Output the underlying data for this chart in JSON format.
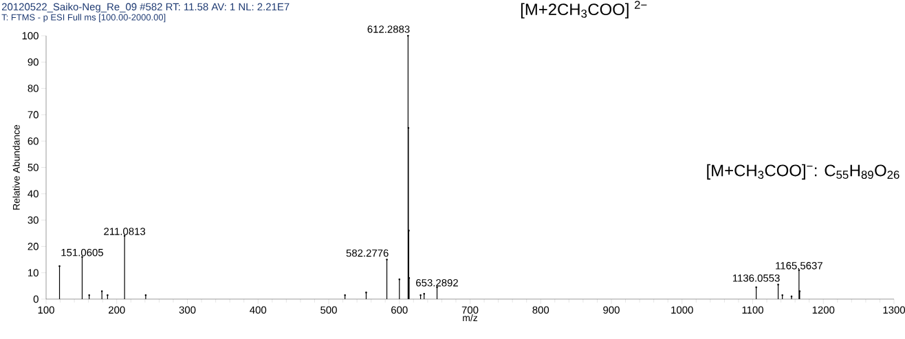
{
  "chart_data": {
    "type": "lollipop",
    "title": "20120522_Saiko-Neg_Re_09 #582  RT: 11.58  AV: 1  NL: 2.21E7",
    "subtitle": "T: FTMS - p ESI Full ms [100.00-2000.00]",
    "xlabel": "m/z",
    "ylabel": "Relative Abundance",
    "x": [
      119,
      151.06,
      161,
      179,
      187,
      211.08,
      241,
      523,
      553,
      582.28,
      600,
      612.29,
      612.79,
      613.29,
      613.79,
      630,
      635,
      653.29,
      1105,
      1136.06,
      1142,
      1155,
      1165.56,
      1166.5
    ],
    "values": [
      12.5,
      16,
      1.5,
      3,
      1.5,
      24,
      1.5,
      1.5,
      2.5,
      15,
      7.5,
      100,
      65,
      26,
      8,
      1.5,
      2,
      4.5,
      4.5,
      5.5,
      1.5,
      1,
      11,
      3
    ],
    "color": "#000000",
    "xlim": [
      100,
      1300
    ],
    "xticks": [
      100,
      200,
      300,
      400,
      500,
      600,
      700,
      800,
      900,
      1000,
      1100,
      1200,
      1300
    ],
    "ylim": [
      0,
      100
    ],
    "yticks": [
      0,
      10,
      20,
      30,
      40,
      50,
      60,
      70,
      80,
      90,
      100
    ],
    "annotations": [
      {
        "text": "151.0605",
        "x": 151.06,
        "y": 16
      },
      {
        "text": "211.0813",
        "x": 211.08,
        "y": 24
      },
      {
        "text": "582.2776",
        "x": 582.28,
        "y": 15
      },
      {
        "text": "612.2883",
        "x": 612.29,
        "y": 100
      },
      {
        "text": "653.2892",
        "x": 653.29,
        "y": 4.5
      },
      {
        "text": "1136.0553",
        "x": 1136.06,
        "y": 5.5
      },
      {
        "text": "1165.5637",
        "x": 1165.56,
        "y": 11
      },
      "[M+2CH$_{3}$COO] $^{2−}$",
      "[M+CH$_{3}$COO]$^{−}$:  C$_{55}$H$_{89}$O$_{26}$"
    ]
  }
}
